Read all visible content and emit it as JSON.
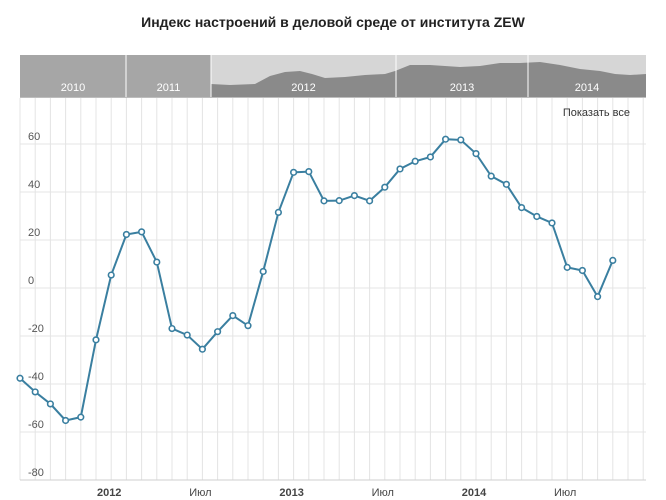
{
  "title": "Индекс настроений в деловой среде от института ZEW",
  "navigator": {
    "years": [
      {
        "label": "2010",
        "selected": false
      },
      {
        "label": "2011",
        "selected": false
      },
      {
        "label": "2012",
        "selected": true
      },
      {
        "label": "2013",
        "selected": true
      },
      {
        "label": "2014",
        "selected": true
      }
    ]
  },
  "show_all_label": "Показать все",
  "colors": {
    "line": "#3a7fa0",
    "navigator_bg": "#d6d6d6",
    "navigator_unselected": "#a6a6a6",
    "navigator_area": "#8a8a8a",
    "grid": "#e4e4e4"
  },
  "chart_data": {
    "type": "line",
    "title": "Индекс настроений в деловой среде от института ZEW",
    "y_ticks": [
      60,
      40,
      20,
      0,
      -20,
      -40,
      -60,
      -80
    ],
    "x_ticks": [
      {
        "label": "2012",
        "bold": true
      },
      {
        "label": "Июл",
        "bold": false
      },
      {
        "label": "2013",
        "bold": true
      },
      {
        "label": "Июл",
        "bold": false
      },
      {
        "label": "2014",
        "bold": true
      },
      {
        "label": "Июл",
        "bold": false
      }
    ],
    "ylim": [
      -80,
      70
    ],
    "grid": true,
    "series": [
      {
        "values": [
          {
            "x": "2011-07",
            "y": -37.6
          },
          {
            "x": "2011-08",
            "y": -43.3
          },
          {
            "x": "2011-09",
            "y": -48.3
          },
          {
            "x": "2011-10",
            "y": -55.2
          },
          {
            "x": "2011-11",
            "y": -53.8
          },
          {
            "x": "2011-12",
            "y": -21.6
          },
          {
            "x": "2012-01",
            "y": 5.4
          },
          {
            "x": "2012-02",
            "y": 22.3
          },
          {
            "x": "2012-03",
            "y": 23.4
          },
          {
            "x": "2012-04",
            "y": 10.8
          },
          {
            "x": "2012-05",
            "y": -16.9
          },
          {
            "x": "2012-06",
            "y": -19.6
          },
          {
            "x": "2012-07",
            "y": -25.5
          },
          {
            "x": "2012-08",
            "y": -18.2
          },
          {
            "x": "2012-09",
            "y": -11.5
          },
          {
            "x": "2012-10",
            "y": -15.7
          },
          {
            "x": "2012-11",
            "y": 6.9
          },
          {
            "x": "2012-12",
            "y": 31.5
          },
          {
            "x": "2013-01",
            "y": 48.2
          },
          {
            "x": "2013-02",
            "y": 48.5
          },
          {
            "x": "2013-03",
            "y": 36.3
          },
          {
            "x": "2013-04",
            "y": 36.4
          },
          {
            "x": "2013-05",
            "y": 38.5
          },
          {
            "x": "2013-06",
            "y": 36.3
          },
          {
            "x": "2013-07",
            "y": 42.0
          },
          {
            "x": "2013-08",
            "y": 49.6
          },
          {
            "x": "2013-09",
            "y": 52.8
          },
          {
            "x": "2013-10",
            "y": 54.6
          },
          {
            "x": "2013-11",
            "y": 62.0
          },
          {
            "x": "2013-12",
            "y": 61.7
          },
          {
            "x": "2014-01",
            "y": 56.0
          },
          {
            "x": "2014-02",
            "y": 46.6
          },
          {
            "x": "2014-03",
            "y": 43.2
          },
          {
            "x": "2014-04",
            "y": 33.5
          },
          {
            "x": "2014-05",
            "y": 29.8
          },
          {
            "x": "2014-06",
            "y": 27.1
          },
          {
            "x": "2014-07",
            "y": 8.6
          },
          {
            "x": "2014-08",
            "y": 7.3
          },
          {
            "x": "2014-09",
            "y": -3.6
          },
          {
            "x": "2014-10",
            "y": 11.5
          }
        ]
      }
    ]
  }
}
